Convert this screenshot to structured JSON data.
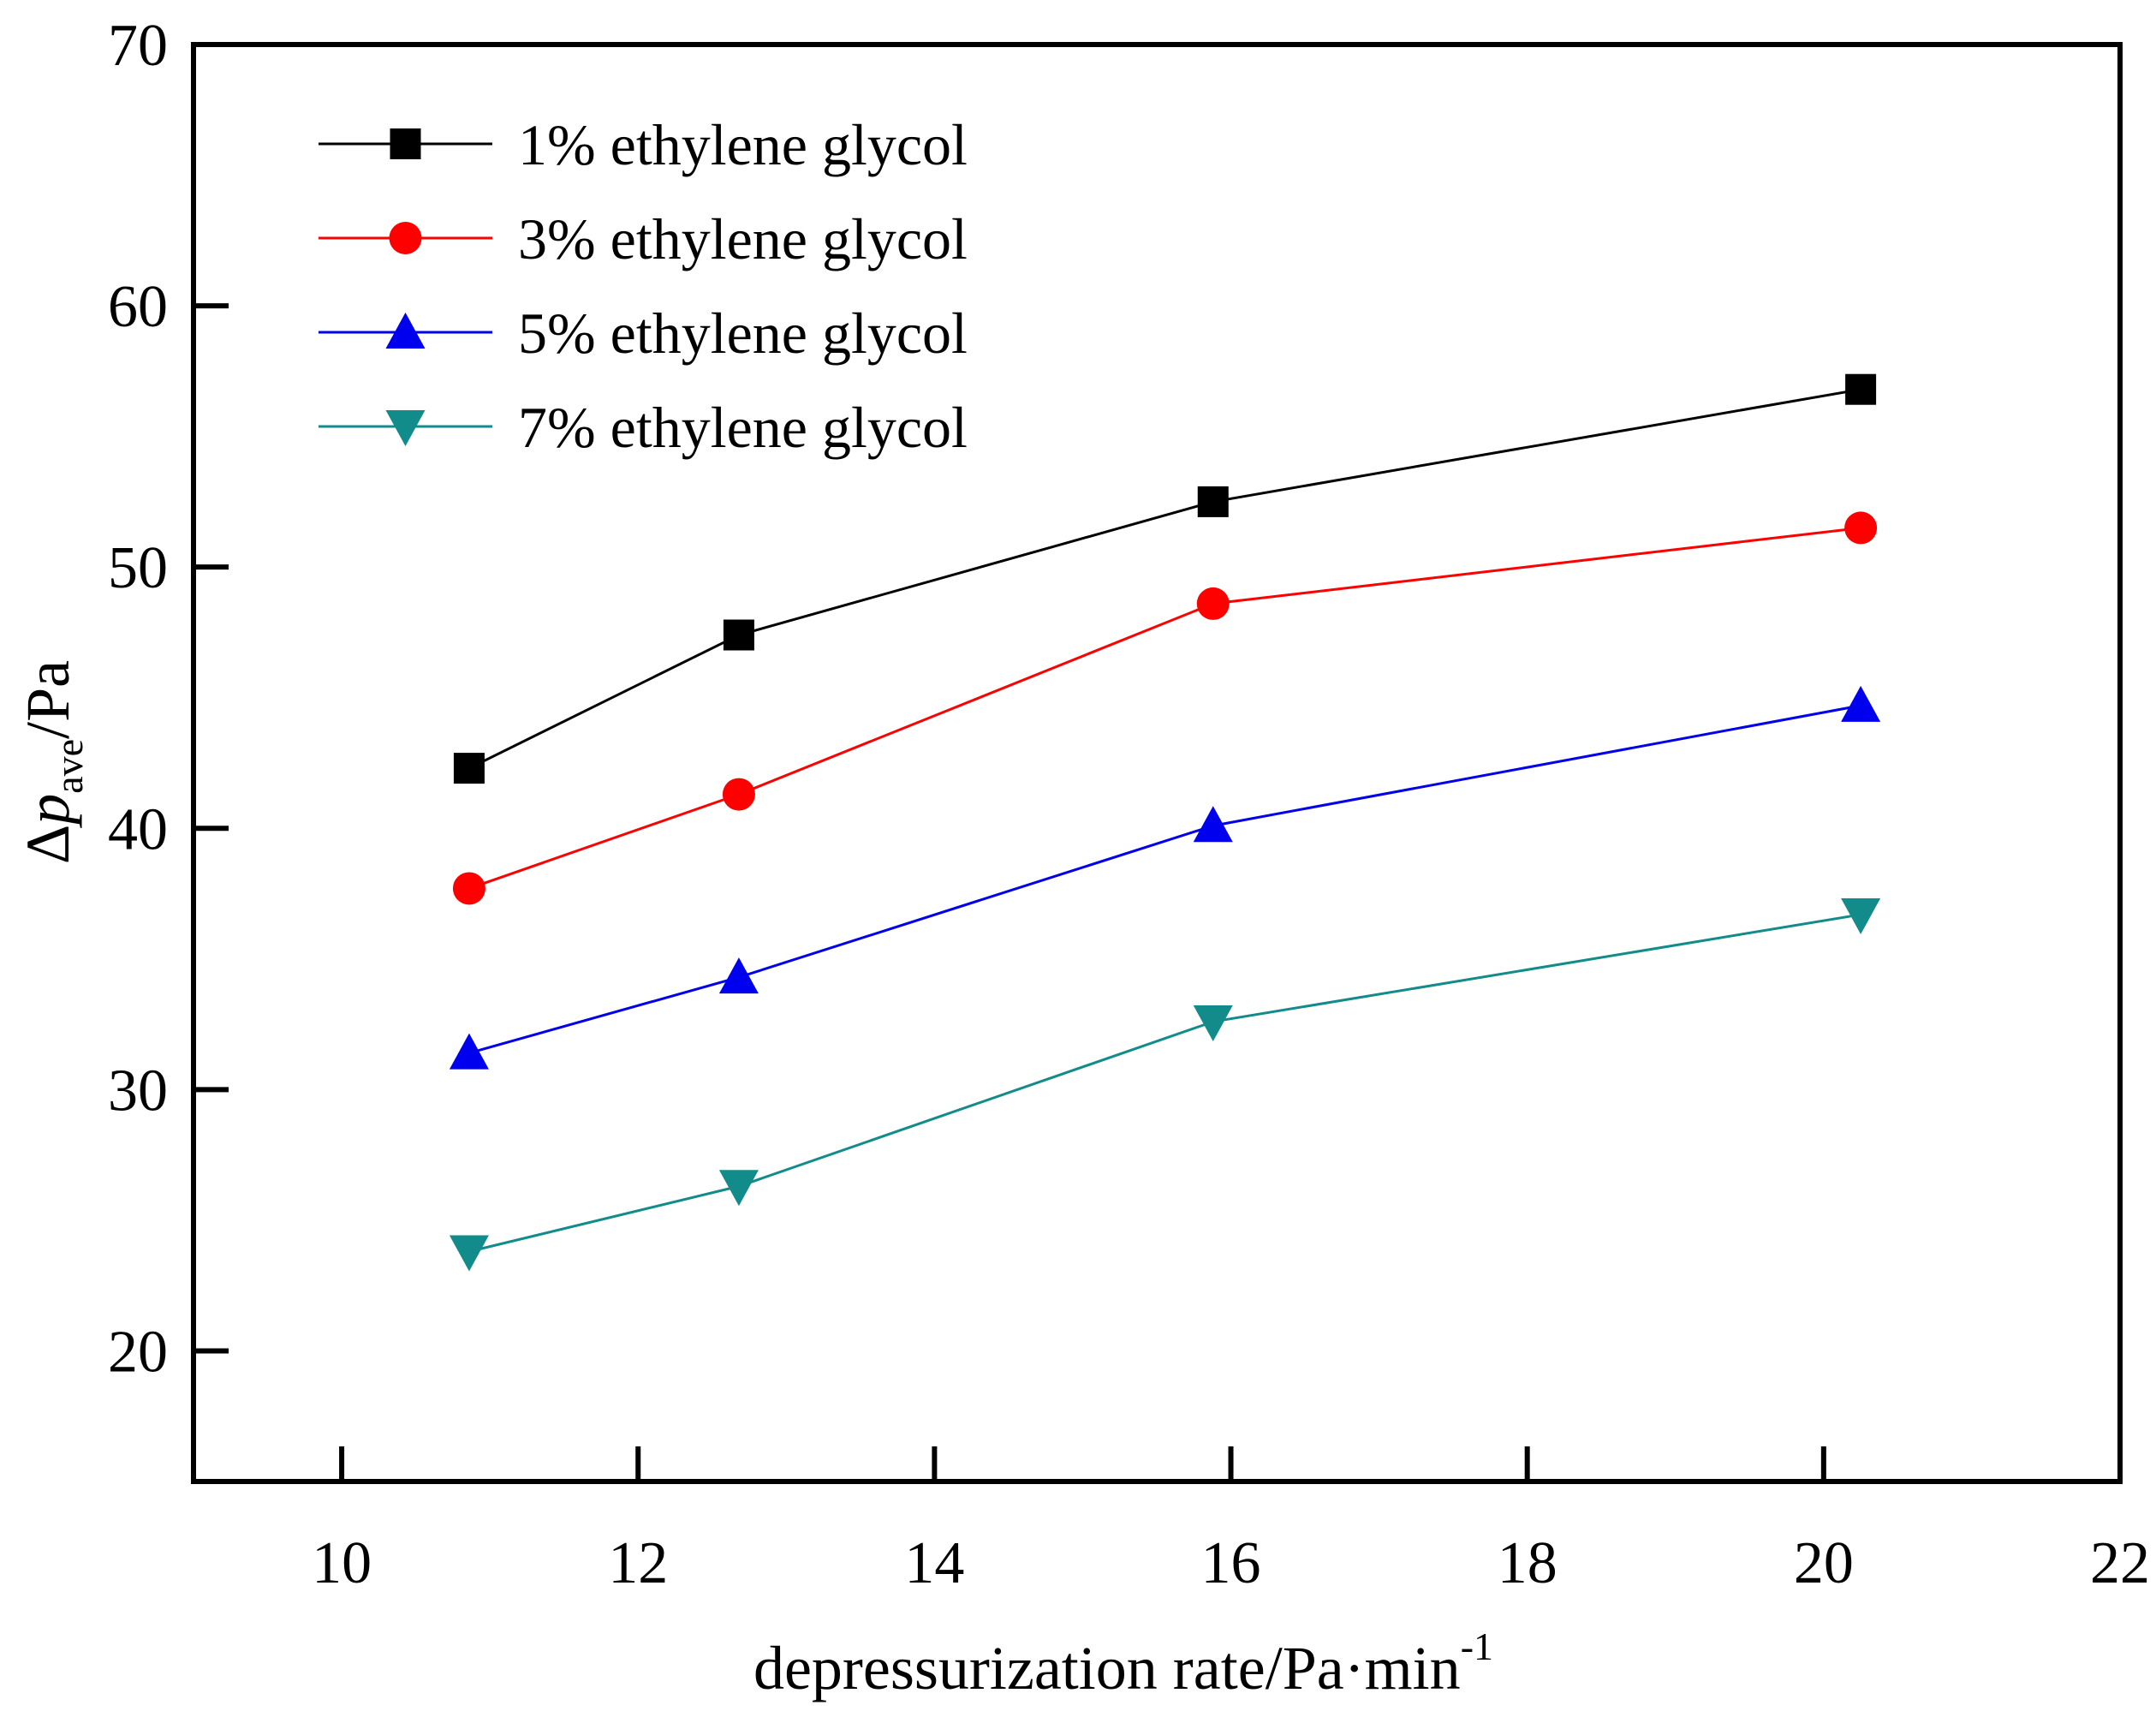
{
  "chart_data": {
    "type": "line",
    "title": "",
    "xlabel": "depressurization rate/Pa·min⁻¹",
    "xlabel_main": "depressurization rate/Pa·min",
    "xlabel_superscript": "-1",
    "ylabel": "Δp_ave/Pa",
    "ylabel_delta": "Δ",
    "ylabel_var": "p",
    "ylabel_subscript": "ave",
    "ylabel_unit": "/Pa",
    "x": [
      10.86,
      12.68,
      15.88,
      20.25
    ],
    "series": [
      {
        "name": "1% ethylene glycol",
        "marker": "square",
        "color": "#000000",
        "values": [
          42.3,
          47.4,
          52.5,
          56.8
        ]
      },
      {
        "name": "3% ethylene glycol",
        "marker": "circle",
        "color": "#ff0000",
        "values": [
          37.7,
          41.3,
          48.6,
          51.5
        ]
      },
      {
        "name": "5% ethylene glycol",
        "marker": "triangle-up",
        "color": "#0000ee",
        "values": [
          31.4,
          34.3,
          40.1,
          44.7
        ]
      },
      {
        "name": "7% ethylene glycol",
        "marker": "triangle-down",
        "color": "#128b8b",
        "values": [
          23.8,
          26.3,
          32.6,
          36.7
        ]
      }
    ],
    "xlim": [
      9,
      22
    ],
    "ylim": [
      15,
      70
    ],
    "xticks": [
      10,
      12,
      14,
      16,
      18,
      20,
      22
    ],
    "yticks": [
      20,
      30,
      40,
      50,
      60,
      70
    ],
    "grid": false,
    "legend_position": "top-left",
    "axis_color": "#000000",
    "background_color": "#ffffff"
  }
}
